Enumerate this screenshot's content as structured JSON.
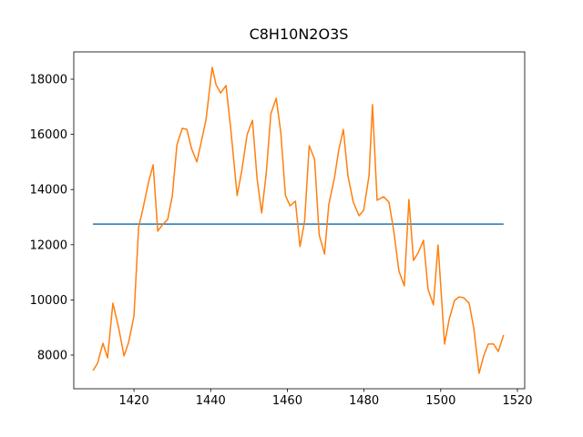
{
  "chart_data": {
    "type": "line",
    "title": "C8H10N2O3S",
    "xlim": [
      1404.3,
      1521.9
    ],
    "xticks": [
      1420,
      1440,
      1460,
      1480,
      1500,
      1520
    ],
    "ylim": [
      6779,
      18990
    ],
    "yticks": [
      8000,
      10000,
      12000,
      14000,
      16000,
      18000
    ],
    "series": [
      {
        "color": "#1f77b4",
        "x": [
          1409.3,
          1516.4
        ],
        "values": [
          12750,
          12750
        ]
      },
      {
        "color": "#ff7f0e",
        "x": [
          1409.3,
          1410.5,
          1411.9,
          1413.1,
          1414.5,
          1416.0,
          1417.4,
          1418.6,
          1420.0,
          1421.2,
          1422.4,
          1423.8,
          1425.0,
          1426.2,
          1427.4,
          1428.8,
          1430.0,
          1431.2,
          1432.6,
          1433.8,
          1435.0,
          1436.4,
          1437.6,
          1438.8,
          1440.4,
          1441.4,
          1442.6,
          1444.0,
          1445.2,
          1446.9,
          1448.1,
          1449.5,
          1450.9,
          1452.1,
          1453.3,
          1454.5,
          1455.7,
          1457.1,
          1458.3,
          1459.5,
          1460.7,
          1462.1,
          1463.3,
          1464.5,
          1465.7,
          1467.1,
          1468.3,
          1469.7,
          1470.8,
          1472.3,
          1473.4,
          1474.6,
          1475.8,
          1477.2,
          1478.7,
          1479.9,
          1481.3,
          1482.2,
          1483.4,
          1485.1,
          1486.5,
          1487.7,
          1489.1,
          1490.5,
          1491.7,
          1492.9,
          1494.1,
          1495.5,
          1496.7,
          1498.1,
          1499.3,
          1501.0,
          1502.2,
          1503.6,
          1504.8,
          1506.0,
          1507.4,
          1508.6,
          1510.0,
          1511.2,
          1512.4,
          1513.8,
          1515.0,
          1516.4
        ],
        "values": [
          7440,
          7700,
          8430,
          7900,
          9880,
          8990,
          7970,
          8460,
          9420,
          12620,
          13350,
          14270,
          14900,
          12490,
          12720,
          12920,
          13780,
          15620,
          16220,
          16180,
          15490,
          15000,
          15760,
          16550,
          18430,
          17800,
          17500,
          17770,
          16250,
          13780,
          14670,
          15990,
          16510,
          14400,
          13150,
          14600,
          16750,
          17310,
          16050,
          13780,
          13410,
          13580,
          11930,
          12850,
          15590,
          15100,
          12360,
          11660,
          13450,
          14440,
          15430,
          16180,
          14500,
          13540,
          13050,
          13250,
          14500,
          17080,
          13610,
          13740,
          13540,
          12550,
          11040,
          10510,
          13640,
          11430,
          11700,
          12160,
          10380,
          9820,
          11990,
          8400,
          9290,
          9980,
          10110,
          10080,
          9880,
          8990,
          7340,
          7970,
          8400,
          8400,
          8130,
          8730
        ]
      }
    ]
  }
}
